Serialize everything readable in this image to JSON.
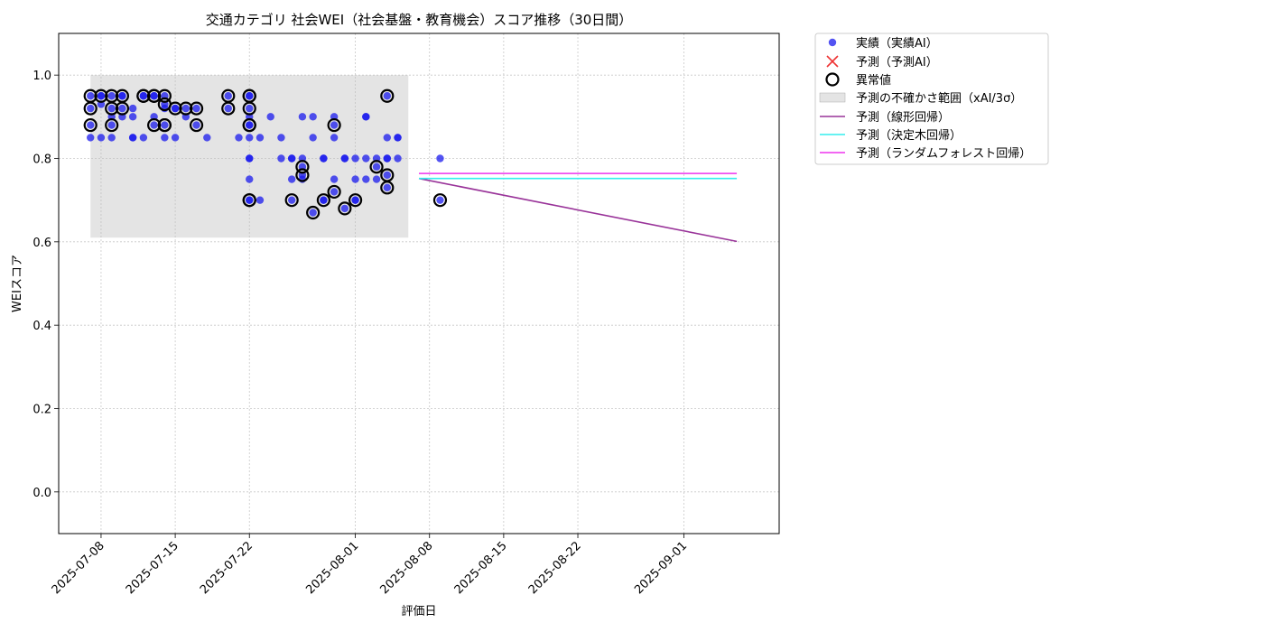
{
  "chart_data": {
    "type": "scatter",
    "title": "交通カテゴリ 社会WEI（社会基盤・教育機会）スコア推移（30日間）",
    "xlabel": "評価日",
    "ylabel": "WEIスコア",
    "xlim": [
      "2025-07-04",
      "2025-09-10"
    ],
    "ylim": [
      -0.1,
      1.1
    ],
    "x_ticks": [
      "2025-07-08",
      "2025-07-15",
      "2025-07-22",
      "2025-08-01",
      "2025-08-08",
      "2025-08-15",
      "2025-08-22",
      "2025-09-01"
    ],
    "y_ticks": [
      "0.0",
      "0.2",
      "0.4",
      "0.6",
      "0.8",
      "1.0"
    ],
    "grid": true,
    "legend_position": "outside-right",
    "legend": [
      "実績（実績AI）",
      "予測（予測AI）",
      "異常値",
      "予測の不確かさ範囲（xAI/3σ）",
      "予測（線形回帰）",
      "予測（決定木回帰）",
      "予測（ランダムフォレスト回帰）"
    ],
    "colors": {
      "actual": "#1a1aee",
      "predicted_marker": "#ee3333",
      "anomaly": "#000000",
      "band": "#bbbbbb",
      "linear": "#993399",
      "tree": "#33eeee",
      "forest": "#ee33ee"
    },
    "uncertainty_band": {
      "x": [
        "2025-07-07",
        "2025-08-06"
      ],
      "y": [
        0.61,
        1.0
      ]
    },
    "actual": [
      {
        "x": "2025-07-07",
        "y": 0.88
      },
      {
        "x": "2025-07-07",
        "y": 0.85
      },
      {
        "x": "2025-07-07",
        "y": 0.92
      },
      {
        "x": "2025-07-07",
        "y": 0.95
      },
      {
        "x": "2025-07-08",
        "y": 0.95
      },
      {
        "x": "2025-07-08",
        "y": 0.85
      },
      {
        "x": "2025-07-08",
        "y": 0.93
      },
      {
        "x": "2025-07-08",
        "y": 0.95
      },
      {
        "x": "2025-07-09",
        "y": 0.85
      },
      {
        "x": "2025-07-09",
        "y": 0.9
      },
      {
        "x": "2025-07-09",
        "y": 0.92
      },
      {
        "x": "2025-07-09",
        "y": 0.88
      },
      {
        "x": "2025-07-09",
        "y": 0.95
      },
      {
        "x": "2025-07-10",
        "y": 0.95
      },
      {
        "x": "2025-07-10",
        "y": 0.9
      },
      {
        "x": "2025-07-10",
        "y": 0.95
      },
      {
        "x": "2025-07-10",
        "y": 0.92
      },
      {
        "x": "2025-07-11",
        "y": 0.85
      },
      {
        "x": "2025-07-11",
        "y": 0.92
      },
      {
        "x": "2025-07-11",
        "y": 0.85
      },
      {
        "x": "2025-07-11",
        "y": 0.9
      },
      {
        "x": "2025-07-12",
        "y": 0.95
      },
      {
        "x": "2025-07-12",
        "y": 0.95
      },
      {
        "x": "2025-07-12",
        "y": 0.85
      },
      {
        "x": "2025-07-13",
        "y": 0.95
      },
      {
        "x": "2025-07-13",
        "y": 0.9
      },
      {
        "x": "2025-07-13",
        "y": 0.95
      },
      {
        "x": "2025-07-13",
        "y": 0.88
      },
      {
        "x": "2025-07-14",
        "y": 0.95
      },
      {
        "x": "2025-07-14",
        "y": 0.85
      },
      {
        "x": "2025-07-14",
        "y": 0.88
      },
      {
        "x": "2025-07-14",
        "y": 0.93
      },
      {
        "x": "2025-07-14",
        "y": 0.92
      },
      {
        "x": "2025-07-15",
        "y": 0.85
      },
      {
        "x": "2025-07-15",
        "y": 0.92
      },
      {
        "x": "2025-07-15",
        "y": 0.92
      },
      {
        "x": "2025-07-16",
        "y": 0.9
      },
      {
        "x": "2025-07-16",
        "y": 0.92
      },
      {
        "x": "2025-07-17",
        "y": 0.88
      },
      {
        "x": "2025-07-17",
        "y": 0.92
      },
      {
        "x": "2025-07-18",
        "y": 0.85
      },
      {
        "x": "2025-07-20",
        "y": 0.95
      },
      {
        "x": "2025-07-20",
        "y": 0.92
      },
      {
        "x": "2025-07-21",
        "y": 0.85
      },
      {
        "x": "2025-07-22",
        "y": 0.88
      },
      {
        "x": "2025-07-22",
        "y": 0.92
      },
      {
        "x": "2025-07-22",
        "y": 0.8
      },
      {
        "x": "2025-07-22",
        "y": 0.88
      },
      {
        "x": "2025-07-22",
        "y": 0.95
      },
      {
        "x": "2025-07-22",
        "y": 0.85
      },
      {
        "x": "2025-07-22",
        "y": 0.9
      },
      {
        "x": "2025-07-22",
        "y": 0.95
      },
      {
        "x": "2025-07-22",
        "y": 0.8
      },
      {
        "x": "2025-07-22",
        "y": 0.7
      },
      {
        "x": "2025-07-22",
        "y": 0.75
      },
      {
        "x": "2025-07-22",
        "y": 0.7
      },
      {
        "x": "2025-07-23",
        "y": 0.85
      },
      {
        "x": "2025-07-23",
        "y": 0.7
      },
      {
        "x": "2025-07-24",
        "y": 0.9
      },
      {
        "x": "2025-07-25",
        "y": 0.8
      },
      {
        "x": "2025-07-25",
        "y": 0.85
      },
      {
        "x": "2025-07-26",
        "y": 0.8
      },
      {
        "x": "2025-07-26",
        "y": 0.75
      },
      {
        "x": "2025-07-26",
        "y": 0.7
      },
      {
        "x": "2025-07-26",
        "y": 0.8
      },
      {
        "x": "2025-07-27",
        "y": 0.8
      },
      {
        "x": "2025-07-27",
        "y": 0.9
      },
      {
        "x": "2025-07-27",
        "y": 0.78
      },
      {
        "x": "2025-07-27",
        "y": 0.76
      },
      {
        "x": "2025-07-27",
        "y": 0.75
      },
      {
        "x": "2025-07-28",
        "y": 0.9
      },
      {
        "x": "2025-07-28",
        "y": 0.85
      },
      {
        "x": "2025-07-28",
        "y": 0.67
      },
      {
        "x": "2025-07-29",
        "y": 0.8
      },
      {
        "x": "2025-07-29",
        "y": 0.7
      },
      {
        "x": "2025-07-29",
        "y": 0.8
      },
      {
        "x": "2025-07-29",
        "y": 0.7
      },
      {
        "x": "2025-07-30",
        "y": 0.9
      },
      {
        "x": "2025-07-30",
        "y": 0.85
      },
      {
        "x": "2025-07-30",
        "y": 0.88
      },
      {
        "x": "2025-07-30",
        "y": 0.75
      },
      {
        "x": "2025-07-30",
        "y": 0.72
      },
      {
        "x": "2025-07-31",
        "y": 0.8
      },
      {
        "x": "2025-07-31",
        "y": 0.8
      },
      {
        "x": "2025-07-31",
        "y": 0.68
      },
      {
        "x": "2025-08-01",
        "y": 0.75
      },
      {
        "x": "2025-08-01",
        "y": 0.8
      },
      {
        "x": "2025-08-01",
        "y": 0.7
      },
      {
        "x": "2025-08-01",
        "y": 0.7
      },
      {
        "x": "2025-08-02",
        "y": 0.8
      },
      {
        "x": "2025-08-02",
        "y": 0.9
      },
      {
        "x": "2025-08-02",
        "y": 0.75
      },
      {
        "x": "2025-08-02",
        "y": 0.9
      },
      {
        "x": "2025-08-03",
        "y": 0.8
      },
      {
        "x": "2025-08-03",
        "y": 0.78
      },
      {
        "x": "2025-08-03",
        "y": 0.75
      },
      {
        "x": "2025-08-04",
        "y": 0.8
      },
      {
        "x": "2025-08-04",
        "y": 0.95
      },
      {
        "x": "2025-08-04",
        "y": 0.85
      },
      {
        "x": "2025-08-04",
        "y": 0.76
      },
      {
        "x": "2025-08-04",
        "y": 0.73
      },
      {
        "x": "2025-08-04",
        "y": 0.8
      },
      {
        "x": "2025-08-05",
        "y": 0.85
      },
      {
        "x": "2025-08-05",
        "y": 0.85
      },
      {
        "x": "2025-08-05",
        "y": 0.8
      },
      {
        "x": "2025-08-09",
        "y": 0.8
      },
      {
        "x": "2025-08-09",
        "y": 0.7
      }
    ],
    "anomalies": [
      {
        "x": "2025-07-07",
        "y": 0.88
      },
      {
        "x": "2025-07-07",
        "y": 0.92
      },
      {
        "x": "2025-07-07",
        "y": 0.95
      },
      {
        "x": "2025-07-08",
        "y": 0.95
      },
      {
        "x": "2025-07-09",
        "y": 0.92
      },
      {
        "x": "2025-07-09",
        "y": 0.88
      },
      {
        "x": "2025-07-09",
        "y": 0.95
      },
      {
        "x": "2025-07-10",
        "y": 0.95
      },
      {
        "x": "2025-07-10",
        "y": 0.92
      },
      {
        "x": "2025-07-12",
        "y": 0.95
      },
      {
        "x": "2025-07-12",
        "y": 0.95
      },
      {
        "x": "2025-07-13",
        "y": 0.95
      },
      {
        "x": "2025-07-13",
        "y": 0.95
      },
      {
        "x": "2025-07-13",
        "y": 0.88
      },
      {
        "x": "2025-07-14",
        "y": 0.95
      },
      {
        "x": "2025-07-14",
        "y": 0.88
      },
      {
        "x": "2025-07-14",
        "y": 0.88
      },
      {
        "x": "2025-07-14",
        "y": 0.93
      },
      {
        "x": "2025-07-15",
        "y": 0.92
      },
      {
        "x": "2025-07-16",
        "y": 0.92
      },
      {
        "x": "2025-07-17",
        "y": 0.88
      },
      {
        "x": "2025-07-17",
        "y": 0.92
      },
      {
        "x": "2025-07-20",
        "y": 0.95
      },
      {
        "x": "2025-07-20",
        "y": 0.92
      },
      {
        "x": "2025-07-22",
        "y": 0.92
      },
      {
        "x": "2025-07-22",
        "y": 0.88
      },
      {
        "x": "2025-07-22",
        "y": 0.95
      },
      {
        "x": "2025-07-22",
        "y": 0.88
      },
      {
        "x": "2025-07-22",
        "y": 0.95
      },
      {
        "x": "2025-07-22",
        "y": 0.7
      },
      {
        "x": "2025-07-22",
        "y": 0.7
      },
      {
        "x": "2025-07-26",
        "y": 0.7
      },
      {
        "x": "2025-07-27",
        "y": 0.78
      },
      {
        "x": "2025-07-27",
        "y": 0.76
      },
      {
        "x": "2025-07-28",
        "y": 0.67
      },
      {
        "x": "2025-07-29",
        "y": 0.7
      },
      {
        "x": "2025-07-30",
        "y": 0.88
      },
      {
        "x": "2025-07-30",
        "y": 0.72
      },
      {
        "x": "2025-07-31",
        "y": 0.68
      },
      {
        "x": "2025-08-01",
        "y": 0.7
      },
      {
        "x": "2025-08-03",
        "y": 0.78
      },
      {
        "x": "2025-08-04",
        "y": 0.95
      },
      {
        "x": "2025-08-04",
        "y": 0.76
      },
      {
        "x": "2025-08-04",
        "y": 0.73
      },
      {
        "x": "2025-08-09",
        "y": 0.7
      }
    ],
    "forecast_lines": [
      {
        "name": "予測（線形回帰）",
        "color": "#993399",
        "x": [
          "2025-08-07",
          "2025-09-06"
        ],
        "y": [
          0.752,
          0.601
        ]
      },
      {
        "name": "予測（決定木回帰）",
        "color": "#33eeee",
        "x": [
          "2025-08-07",
          "2025-09-06"
        ],
        "y": [
          0.752,
          0.752
        ]
      },
      {
        "name": "予測（ランダムフォレスト回帰）",
        "color": "#ee33ee",
        "x": [
          "2025-08-07",
          "2025-09-06"
        ],
        "y": [
          0.764,
          0.764
        ]
      }
    ]
  }
}
